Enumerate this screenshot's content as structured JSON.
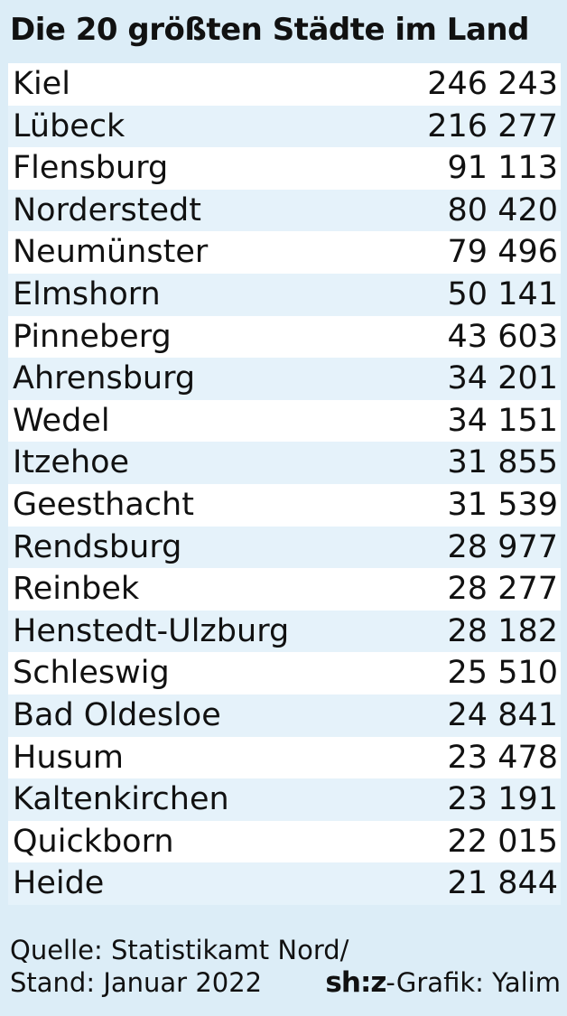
{
  "chart_data": {
    "type": "table",
    "title": "Die 20 größten Städte im Land",
    "columns": [
      "city",
      "population"
    ],
    "rows": [
      {
        "city": "Kiel",
        "population": "246 243"
      },
      {
        "city": "Lübeck",
        "population": "216 277"
      },
      {
        "city": "Flensburg",
        "population": "91 113"
      },
      {
        "city": "Norderstedt",
        "population": "80 420"
      },
      {
        "city": "Neumünster",
        "population": "79 496"
      },
      {
        "city": "Elmshorn",
        "population": "50 141"
      },
      {
        "city": "Pinneberg",
        "population": "43 603"
      },
      {
        "city": "Ahrensburg",
        "population": "34 201"
      },
      {
        "city": "Wedel",
        "population": "34 151"
      },
      {
        "city": "Itzehoe",
        "population": "31 855"
      },
      {
        "city": "Geesthacht",
        "population": "31 539"
      },
      {
        "city": "Rendsburg",
        "population": "28 977"
      },
      {
        "city": "Reinbek",
        "population": "28 277"
      },
      {
        "city": "Henstedt-Ulzburg",
        "population": "28 182"
      },
      {
        "city": "Schleswig",
        "population": "25 510"
      },
      {
        "city": "Bad Oldesloe",
        "population": "24 841"
      },
      {
        "city": "Husum",
        "population": "23 478"
      },
      {
        "city": "Kaltenkirchen",
        "population": "23 191"
      },
      {
        "city": "Quickborn",
        "population": "22 015"
      },
      {
        "city": "Heide",
        "population": "21 844"
      }
    ]
  },
  "footer": {
    "source": "Quelle: Statistikamt Nord/",
    "date": "Stand: Januar 2022",
    "logo": "sh:z",
    "credit": "-Grafik: Yalim"
  },
  "colors": {
    "background": "#dcedf7",
    "row_light": "#ffffff",
    "row_tint": "#e5f2fa",
    "text": "#111111"
  }
}
